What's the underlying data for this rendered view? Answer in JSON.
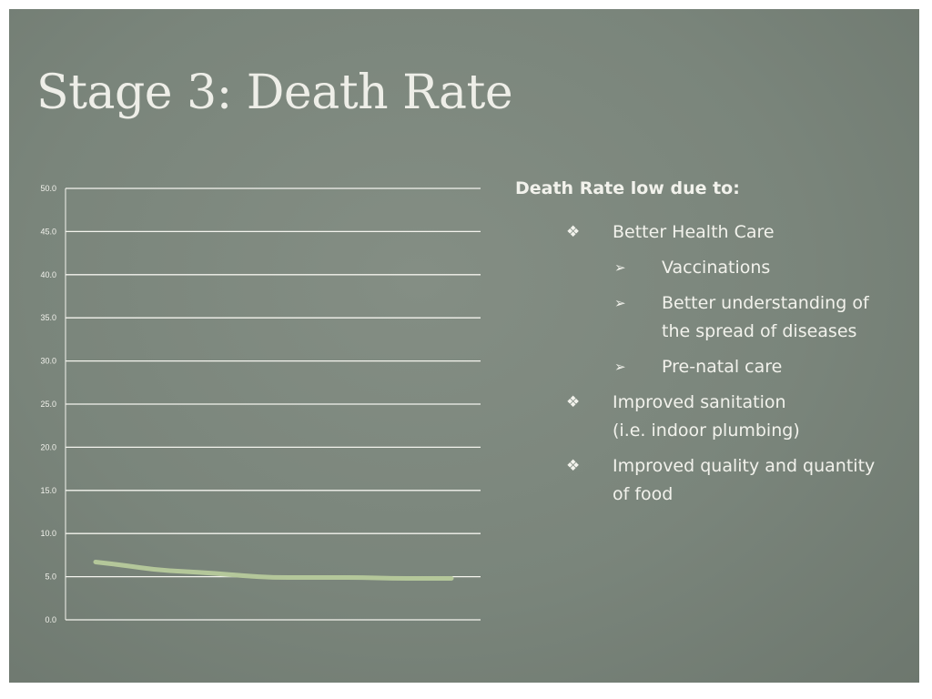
{
  "slide": {
    "title": "Stage 3: Death Rate"
  },
  "bullets": {
    "heading": "Death Rate low due to:",
    "main_marker": "❖",
    "sub_marker": "➢",
    "items": [
      {
        "text": "Better Health Care",
        "sub": [
          "Vaccinations",
          "Better understanding of\nthe spread of diseases",
          "Pre-natal care"
        ]
      },
      {
        "text": "Improved sanitation\n (i.e. indoor plumbing)",
        "sub": []
      },
      {
        "text": "Improved quality and quantity\nof food",
        "sub": []
      }
    ]
  },
  "colors": {
    "background": "#7a857b",
    "text": "#f2f2ec",
    "gridline": "#f4f4ee",
    "series_line": "#b4c79a"
  },
  "chart_data": {
    "type": "line",
    "title": "",
    "xlabel": "",
    "ylabel": "",
    "ylim": [
      0,
      50
    ],
    "yticks": [
      "0.0",
      "5.0",
      "10.0",
      "15.0",
      "20.0",
      "25.0",
      "30.0",
      "35.0",
      "40.0",
      "45.0",
      "50.0"
    ],
    "grid": true,
    "series": [
      {
        "values": [
          6.7,
          6.3,
          5.8,
          5.6,
          5.4,
          5.1,
          4.9,
          4.9,
          4.9,
          4.9,
          4.8,
          4.8,
          4.8
        ]
      }
    ]
  }
}
